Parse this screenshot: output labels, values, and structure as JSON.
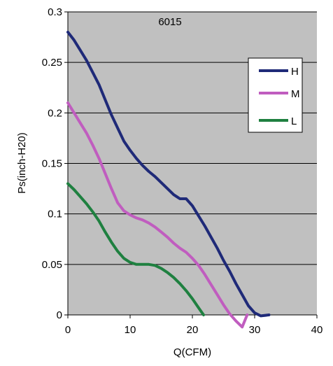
{
  "chart_data": {
    "type": "line",
    "title": "6015",
    "xlabel": "Q(CFM)",
    "ylabel": "Ps(inch-H20)",
    "xlim": [
      0,
      40
    ],
    "ylim": [
      0,
      0.3
    ],
    "xticks": [
      0,
      10,
      20,
      30,
      40
    ],
    "yticks": [
      0,
      0.05,
      0.1,
      0.15,
      0.2,
      0.25,
      0.3
    ],
    "xtick_labels": [
      "0",
      "10",
      "20",
      "30",
      "40"
    ],
    "ytick_labels": [
      "0",
      "0.05",
      "0.1",
      "0.15",
      "0.2",
      "0.25",
      "0.3"
    ],
    "grid": "horizontal",
    "plot_background": "#c0c0c0",
    "legend_position": "right",
    "series": [
      {
        "name": "H",
        "color": "#1f2a78",
        "x": [
          0,
          1,
          2,
          3,
          4,
          5,
          6,
          7,
          8,
          9,
          10,
          11,
          12,
          13,
          14,
          15,
          16,
          17,
          18,
          19,
          20,
          21,
          22,
          23,
          24,
          25,
          26,
          27,
          28,
          29,
          30,
          31,
          32.3
        ],
        "y": [
          0.28,
          0.272,
          0.262,
          0.252,
          0.24,
          0.228,
          0.213,
          0.198,
          0.185,
          0.172,
          0.163,
          0.155,
          0.148,
          0.142,
          0.137,
          0.131,
          0.125,
          0.119,
          0.115,
          0.115,
          0.108,
          0.098,
          0.088,
          0.077,
          0.066,
          0.054,
          0.043,
          0.031,
          0.02,
          0.009,
          0.002,
          -0.001,
          0
        ]
      },
      {
        "name": "M",
        "color": "#c05dbf",
        "x": [
          0,
          1,
          2,
          3,
          4,
          5,
          6,
          7,
          8,
          9,
          10,
          11,
          12,
          13,
          14,
          15,
          16,
          17,
          18,
          19,
          20,
          21,
          22,
          23,
          24,
          25,
          26,
          27,
          28,
          28.8
        ],
        "y": [
          0.21,
          0.2,
          0.19,
          0.18,
          0.168,
          0.155,
          0.14,
          0.125,
          0.111,
          0.103,
          0.099,
          0.096,
          0.094,
          0.091,
          0.087,
          0.082,
          0.077,
          0.071,
          0.066,
          0.062,
          0.056,
          0.049,
          0.04,
          0.03,
          0.02,
          0.01,
          0.001,
          -0.006,
          -0.012,
          0
        ]
      },
      {
        "name": "L",
        "color": "#1f8040",
        "x": [
          0,
          1,
          2,
          3,
          4,
          5,
          6,
          7,
          8,
          9,
          10,
          11,
          12,
          13,
          14,
          15,
          16,
          17,
          18,
          19,
          20,
          21,
          21.8
        ],
        "y": [
          0.13,
          0.124,
          0.117,
          0.11,
          0.102,
          0.093,
          0.082,
          0.072,
          0.063,
          0.056,
          0.052,
          0.05,
          0.05,
          0.05,
          0.049,
          0.046,
          0.042,
          0.037,
          0.031,
          0.024,
          0.016,
          0.007,
          0
        ]
      }
    ]
  }
}
